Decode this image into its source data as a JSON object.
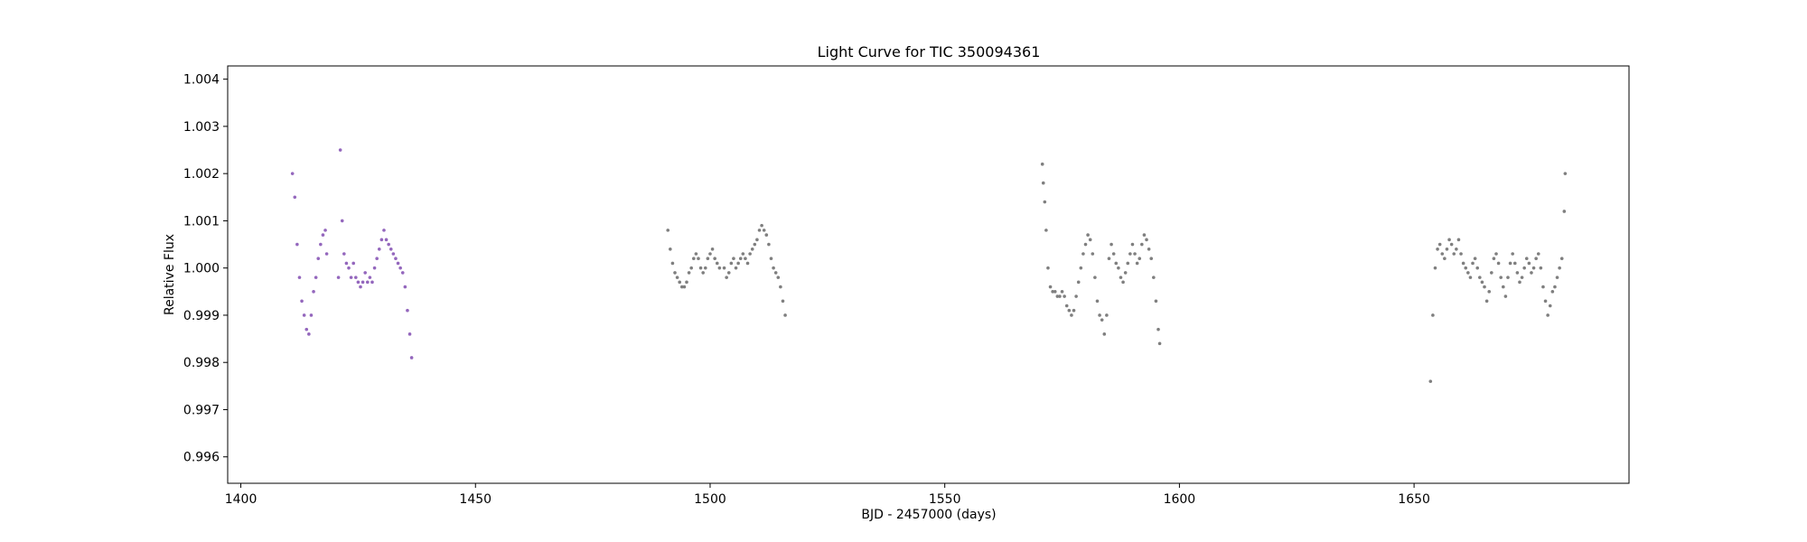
{
  "chart_data": {
    "type": "scatter",
    "title": "Light Curve for TIC 350094361",
    "xlabel": "BJD - 2457000 (days)",
    "ylabel": "Relative Flux",
    "xlim": [
      1397.2,
      1695.8
    ],
    "ylim": [
      0.99544,
      1.00428
    ],
    "xticks": [
      1400,
      1450,
      1500,
      1550,
      1600,
      1650
    ],
    "yticks": [
      0.996,
      0.997,
      0.998,
      0.999,
      1.0,
      1.001,
      1.002,
      1.003,
      1.004
    ],
    "ytick_labels": [
      "0.996",
      "0.997",
      "0.998",
      "0.999",
      "1.000",
      "1.001",
      "1.002",
      "1.003",
      "1.004"
    ],
    "grid": false,
    "series": [
      {
        "color": "#9467bd",
        "points": [
          [
            1411.0,
            1.002
          ],
          [
            1411.5,
            1.0015
          ],
          [
            1412.0,
            1.0005
          ],
          [
            1412.5,
            0.9998
          ],
          [
            1413.0,
            0.9993
          ],
          [
            1413.5,
            0.999
          ],
          [
            1414.0,
            0.9987
          ],
          [
            1414.5,
            0.9986
          ],
          [
            1415.0,
            0.999
          ],
          [
            1415.5,
            0.9995
          ],
          [
            1416.0,
            0.9998
          ],
          [
            1416.5,
            1.0002
          ],
          [
            1417.0,
            1.0005
          ],
          [
            1417.5,
            1.0007
          ],
          [
            1418.0,
            1.0008
          ],
          [
            1418.3,
            1.0003
          ],
          [
            1420.8,
            0.9998
          ],
          [
            1421.2,
            1.0025
          ],
          [
            1421.6,
            1.001
          ],
          [
            1422.0,
            1.0003
          ],
          [
            1422.5,
            1.0001
          ],
          [
            1423.0,
            1.0
          ],
          [
            1423.5,
            0.9998
          ],
          [
            1424.0,
            1.0001
          ],
          [
            1424.5,
            0.9998
          ],
          [
            1425.0,
            0.9997
          ],
          [
            1425.5,
            0.9996
          ],
          [
            1426.0,
            0.9997
          ],
          [
            1426.5,
            0.9999
          ],
          [
            1427.0,
            0.9997
          ],
          [
            1427.5,
            0.9998
          ],
          [
            1428.0,
            0.9997
          ],
          [
            1428.5,
            1.0
          ],
          [
            1429.0,
            1.0002
          ],
          [
            1429.5,
            1.0004
          ],
          [
            1430.0,
            1.0006
          ],
          [
            1430.5,
            1.0008
          ],
          [
            1431.0,
            1.0006
          ],
          [
            1431.5,
            1.0005
          ],
          [
            1432.0,
            1.0004
          ],
          [
            1432.5,
            1.0003
          ],
          [
            1433.0,
            1.0002
          ],
          [
            1433.5,
            1.0001
          ],
          [
            1434.0,
            1.0
          ],
          [
            1434.5,
            0.9999
          ],
          [
            1435.0,
            0.9996
          ],
          [
            1435.5,
            0.9991
          ],
          [
            1436.0,
            0.9986
          ],
          [
            1436.4,
            0.9981
          ]
        ]
      },
      {
        "color": "#7f7f7f",
        "points": [
          [
            1491.0,
            1.0008
          ],
          [
            1491.5,
            1.0004
          ],
          [
            1492.0,
            1.0001
          ],
          [
            1492.5,
            0.9999
          ],
          [
            1493.0,
            0.9998
          ],
          [
            1493.5,
            0.9997
          ],
          [
            1494.0,
            0.9996
          ],
          [
            1494.5,
            0.9996
          ],
          [
            1495.0,
            0.9997
          ],
          [
            1495.5,
            0.9999
          ],
          [
            1496.0,
            1.0
          ],
          [
            1496.5,
            1.0002
          ],
          [
            1497.0,
            1.0003
          ],
          [
            1497.5,
            1.0002
          ],
          [
            1498.0,
            1.0
          ],
          [
            1498.5,
            0.9999
          ],
          [
            1499.0,
            1.0
          ],
          [
            1499.5,
            1.0002
          ],
          [
            1500.0,
            1.0003
          ],
          [
            1500.5,
            1.0004
          ],
          [
            1501.0,
            1.0002
          ],
          [
            1501.5,
            1.0001
          ],
          [
            1502.0,
            1.0
          ],
          [
            1503.0,
            1.0
          ],
          [
            1503.5,
            0.9998
          ],
          [
            1504.0,
            0.9999
          ],
          [
            1504.5,
            1.0001
          ],
          [
            1505.0,
            1.0002
          ],
          [
            1505.5,
            1.0
          ],
          [
            1506.0,
            1.0001
          ],
          [
            1506.5,
            1.0002
          ],
          [
            1507.0,
            1.0003
          ],
          [
            1507.5,
            1.0002
          ],
          [
            1508.0,
            1.0001
          ],
          [
            1508.5,
            1.0003
          ],
          [
            1509.0,
            1.0004
          ],
          [
            1509.5,
            1.0005
          ],
          [
            1510.0,
            1.0006
          ],
          [
            1510.5,
            1.0008
          ],
          [
            1511.0,
            1.0009
          ],
          [
            1511.5,
            1.0008
          ],
          [
            1512.0,
            1.0007
          ],
          [
            1512.5,
            1.0005
          ],
          [
            1513.0,
            1.0002
          ],
          [
            1513.5,
            1.0
          ],
          [
            1514.0,
            0.9999
          ],
          [
            1514.5,
            0.9998
          ],
          [
            1515.0,
            0.9996
          ],
          [
            1515.5,
            0.9993
          ],
          [
            1516.0,
            0.999
          ],
          [
            1570.8,
            1.0022
          ],
          [
            1571.0,
            1.0018
          ],
          [
            1571.3,
            1.0014
          ],
          [
            1571.6,
            1.0008
          ],
          [
            1572.0,
            1.0
          ],
          [
            1572.5,
            0.9996
          ],
          [
            1573.0,
            0.9995
          ],
          [
            1573.5,
            0.9995
          ],
          [
            1574.0,
            0.9994
          ],
          [
            1574.5,
            0.9994
          ],
          [
            1575.0,
            0.9995
          ],
          [
            1575.5,
            0.9994
          ],
          [
            1576.0,
            0.9992
          ],
          [
            1576.5,
            0.9991
          ],
          [
            1577.0,
            0.999
          ],
          [
            1577.5,
            0.9991
          ],
          [
            1578.0,
            0.9994
          ],
          [
            1578.5,
            0.9997
          ],
          [
            1579.0,
            1.0
          ],
          [
            1579.5,
            1.0003
          ],
          [
            1580.0,
            1.0005
          ],
          [
            1580.5,
            1.0007
          ],
          [
            1581.0,
            1.0006
          ],
          [
            1581.5,
            1.0003
          ],
          [
            1582.0,
            0.9998
          ],
          [
            1582.5,
            0.9993
          ],
          [
            1583.0,
            0.999
          ],
          [
            1583.5,
            0.9989
          ],
          [
            1584.0,
            0.9986
          ],
          [
            1584.5,
            0.999
          ],
          [
            1585.0,
            1.0002
          ],
          [
            1585.5,
            1.0005
          ],
          [
            1586.0,
            1.0003
          ],
          [
            1586.5,
            1.0001
          ],
          [
            1587.0,
            1.0
          ],
          [
            1587.5,
            0.9998
          ],
          [
            1588.0,
            0.9997
          ],
          [
            1588.5,
            0.9999
          ],
          [
            1589.0,
            1.0001
          ],
          [
            1589.5,
            1.0003
          ],
          [
            1590.0,
            1.0005
          ],
          [
            1590.5,
            1.0003
          ],
          [
            1591.0,
            1.0001
          ],
          [
            1591.5,
            1.0002
          ],
          [
            1592.0,
            1.0005
          ],
          [
            1592.5,
            1.0007
          ],
          [
            1593.0,
            1.0006
          ],
          [
            1593.5,
            1.0004
          ],
          [
            1594.0,
            1.0002
          ],
          [
            1594.5,
            0.9998
          ],
          [
            1595.0,
            0.9993
          ],
          [
            1595.5,
            0.9987
          ],
          [
            1595.8,
            0.9984
          ],
          [
            1653.5,
            0.9976
          ],
          [
            1654.0,
            0.999
          ],
          [
            1654.5,
            1.0
          ],
          [
            1655.0,
            1.0004
          ],
          [
            1655.5,
            1.0005
          ],
          [
            1656.0,
            1.0003
          ],
          [
            1656.5,
            1.0002
          ],
          [
            1657.0,
            1.0004
          ],
          [
            1657.5,
            1.0006
          ],
          [
            1658.0,
            1.0005
          ],
          [
            1658.5,
            1.0003
          ],
          [
            1659.0,
            1.0004
          ],
          [
            1659.5,
            1.0006
          ],
          [
            1660.0,
            1.0003
          ],
          [
            1660.5,
            1.0001
          ],
          [
            1661.0,
            1.0
          ],
          [
            1661.5,
            0.9999
          ],
          [
            1662.0,
            0.9998
          ],
          [
            1662.5,
            1.0001
          ],
          [
            1663.0,
            1.0002
          ],
          [
            1663.5,
            1.0
          ],
          [
            1664.0,
            0.9998
          ],
          [
            1664.5,
            0.9997
          ],
          [
            1665.0,
            0.9996
          ],
          [
            1665.5,
            0.9993
          ],
          [
            1666.0,
            0.9995
          ],
          [
            1666.5,
            0.9999
          ],
          [
            1667.0,
            1.0002
          ],
          [
            1667.5,
            1.0003
          ],
          [
            1668.0,
            1.0001
          ],
          [
            1668.5,
            0.9998
          ],
          [
            1669.0,
            0.9996
          ],
          [
            1669.5,
            0.9994
          ],
          [
            1670.0,
            0.9998
          ],
          [
            1670.5,
            1.0001
          ],
          [
            1671.0,
            1.0003
          ],
          [
            1671.5,
            1.0001
          ],
          [
            1672.0,
            0.9999
          ],
          [
            1672.5,
            0.9997
          ],
          [
            1673.0,
            0.9998
          ],
          [
            1673.5,
            1.0
          ],
          [
            1674.0,
            1.0002
          ],
          [
            1674.5,
            1.0001
          ],
          [
            1675.0,
            0.9999
          ],
          [
            1675.5,
            1.0
          ],
          [
            1676.0,
            1.0002
          ],
          [
            1676.5,
            1.0003
          ],
          [
            1677.0,
            1.0
          ],
          [
            1677.5,
            0.9996
          ],
          [
            1678.0,
            0.9993
          ],
          [
            1678.5,
            0.999
          ],
          [
            1679.0,
            0.9992
          ],
          [
            1679.5,
            0.9995
          ],
          [
            1680.0,
            0.9996
          ],
          [
            1680.5,
            0.9998
          ],
          [
            1681.0,
            1.0
          ],
          [
            1681.5,
            1.0002
          ],
          [
            1682.0,
            1.0012
          ],
          [
            1682.2,
            1.002
          ]
        ]
      }
    ]
  }
}
